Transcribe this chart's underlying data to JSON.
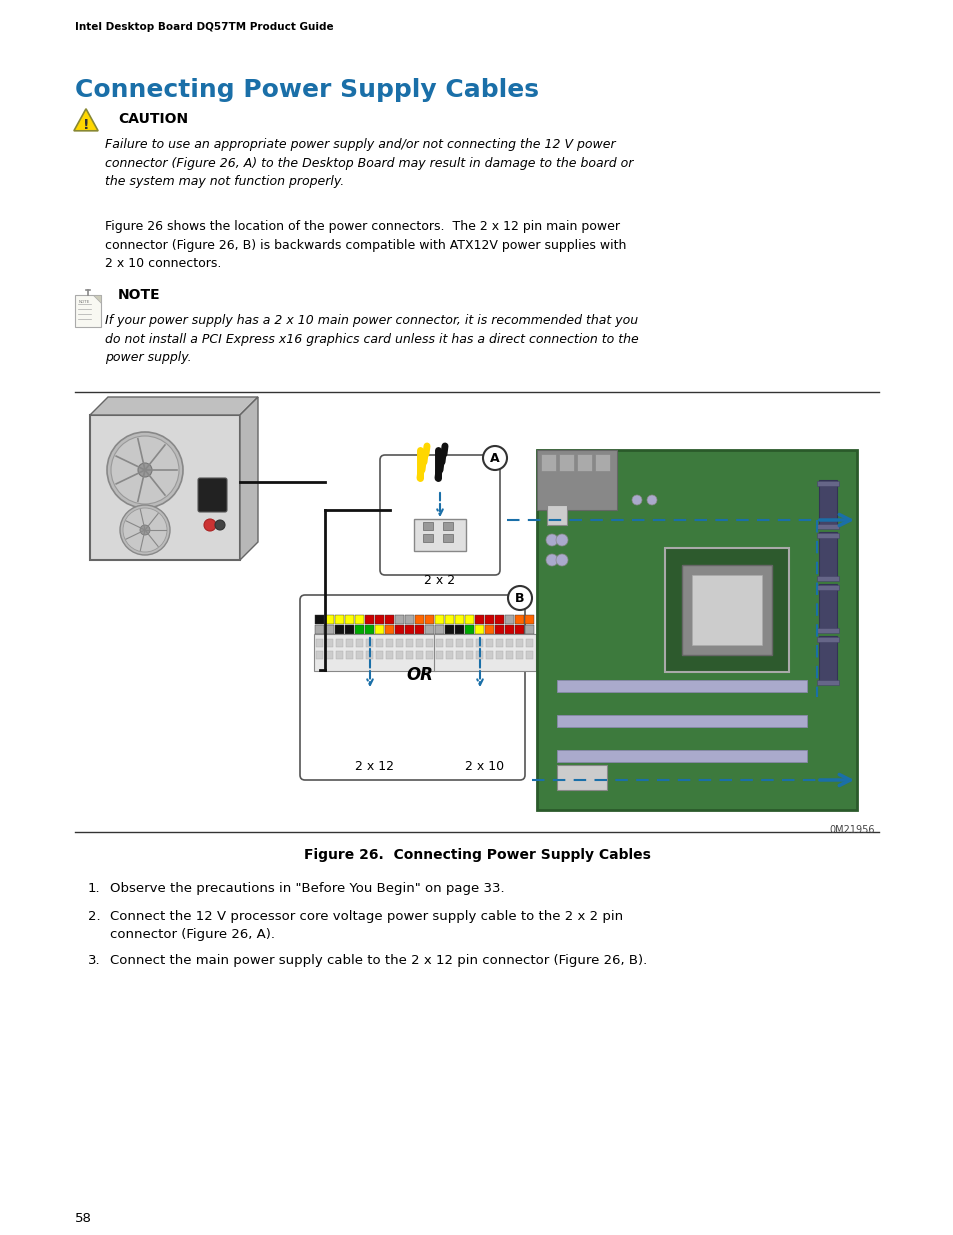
{
  "header_text": "Intel Desktop Board DQ57TM Product Guide",
  "title": "Connecting Power Supply Cables",
  "caution_label": "CAUTION",
  "caution_text_italic": "Failure to use an appropriate power supply and/or not connecting the 12 V power\nconnector (Figure 26, A) to the Desktop Board may result in damage to the board or\nthe system may not function properly.",
  "caution_text_normal": "Figure 26 shows the location of the power connectors.  The 2 x 12 pin main power\nconnector (Figure 26, B) is backwards compatible with ATX12V power supplies with\n2 x 10 connectors.",
  "note_label": "NOTE",
  "note_text": "If your power supply has a 2 x 10 main power connector, it is recommended that you\ndo not install a PCI Express x16 graphics card unless it has a direct connection to the\npower supply.",
  "figure_caption": "Figure 26.  Connecting Power Supply Cables",
  "step1": "Observe the precautions in \"Before You Begin\" on page 33.",
  "step2a": "Connect the 12 V processor core voltage power supply cable to the 2 x 2 pin",
  "step2b": "connector (Figure 26, A).",
  "step3": "Connect the main power supply cable to the 2 x 12 pin connector (Figure 26, B).",
  "page_number": "58",
  "image_id": "0M21956",
  "bg_color": "#ffffff",
  "title_color": "#1a6fa8",
  "header_color": "#000000",
  "body_color": "#000000",
  "caption_color": "#000000",
  "blue_arrow": "#1a6fa8",
  "mb_green": "#3a7a3a",
  "mb_dark_green": "#2a5e2a"
}
